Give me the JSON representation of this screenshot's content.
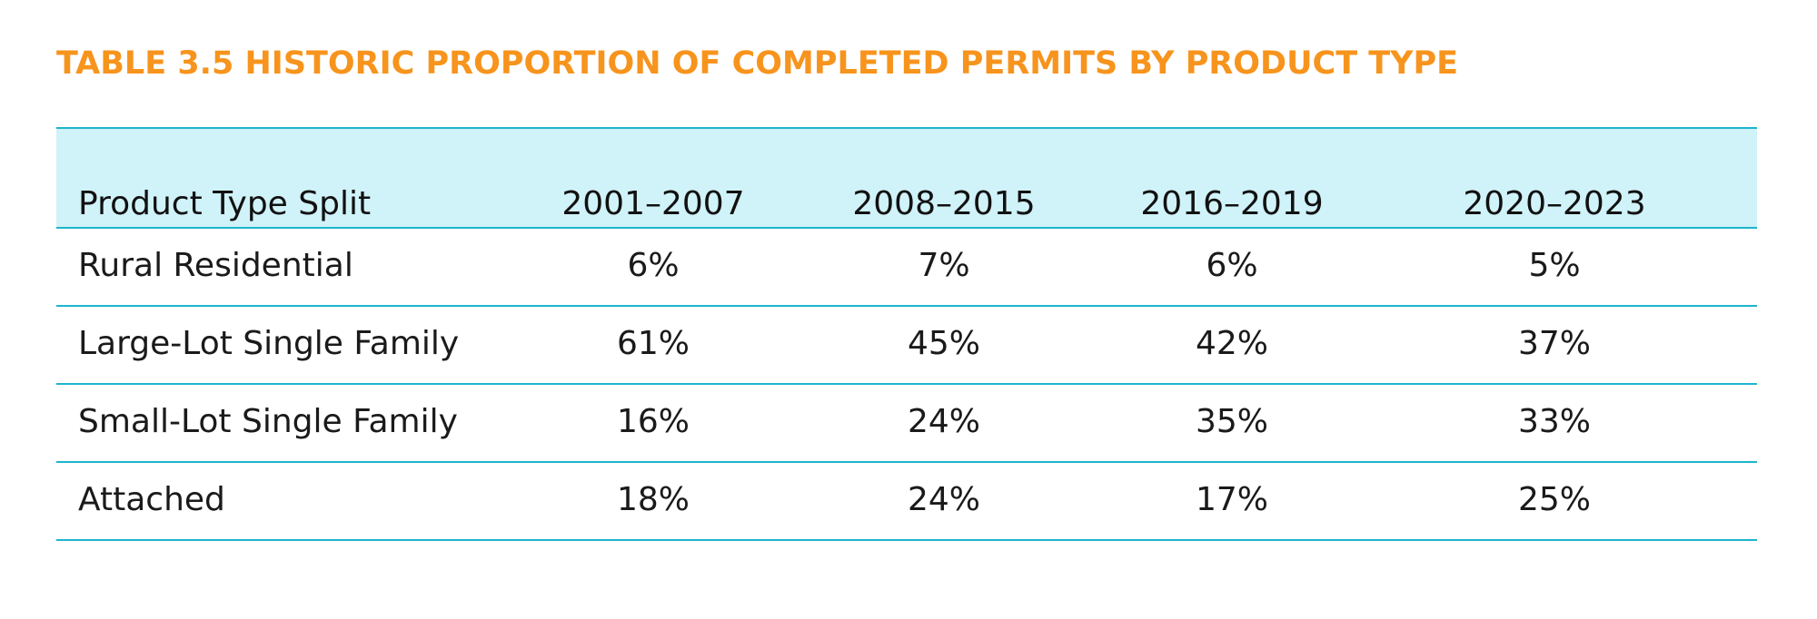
{
  "title": "TABLE 3.5 HISTORIC PROPORTION OF COMPLETED PERMITS BY PRODUCT TYPE",
  "table": {
    "headers": [
      "Product Type Split",
      "2001–2007",
      "2008–2015",
      "2016–2019",
      "2020–2023"
    ],
    "rows": [
      [
        "Rural Residential",
        "6%",
        "7%",
        "6%",
        "5%"
      ],
      [
        "Large-Lot Single Family",
        "61%",
        "45%",
        "42%",
        "37%"
      ],
      [
        "Small-Lot Single Family",
        "16%",
        "24%",
        "35%",
        "33%"
      ],
      [
        "Attached",
        "18%",
        "24%",
        "17%",
        "25%"
      ]
    ]
  },
  "colors": {
    "title": "#f7941d",
    "header_background": "#d0f2f9",
    "rule": "#1cb5cc"
  }
}
